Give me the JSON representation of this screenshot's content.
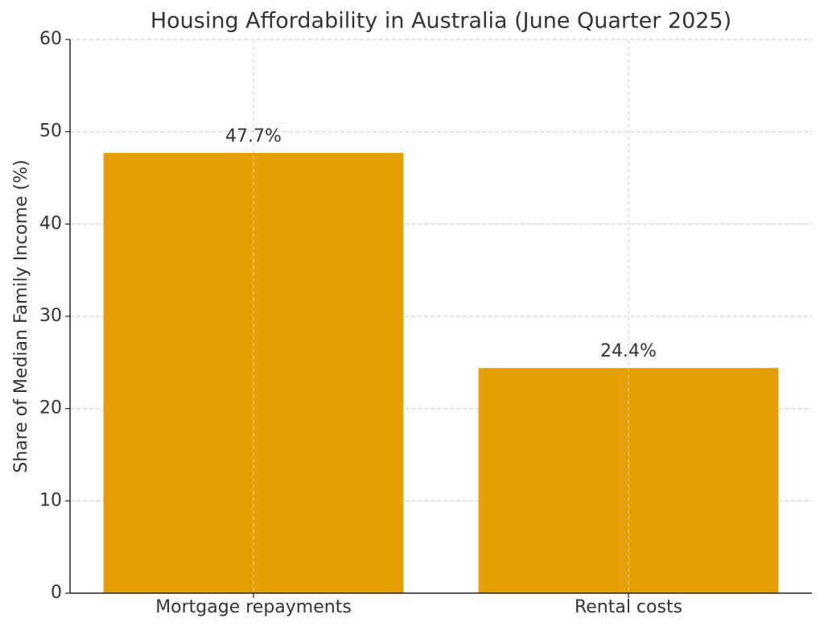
{
  "chart_data": {
    "type": "bar",
    "title": "Housing Affordability in Australia (June Quarter 2025)",
    "y_label": "Share of Median Family Income (%)",
    "categories": [
      "Mortgage repayments",
      "Rental costs"
    ],
    "values": [
      47.7,
      24.4
    ],
    "value_labels": [
      "47.7%",
      "24.4%"
    ],
    "color": "#e69f00",
    "ylim": [
      0,
      60
    ],
    "yticks": [
      0,
      10,
      20,
      30,
      40,
      50,
      60
    ],
    "grid": true
  }
}
